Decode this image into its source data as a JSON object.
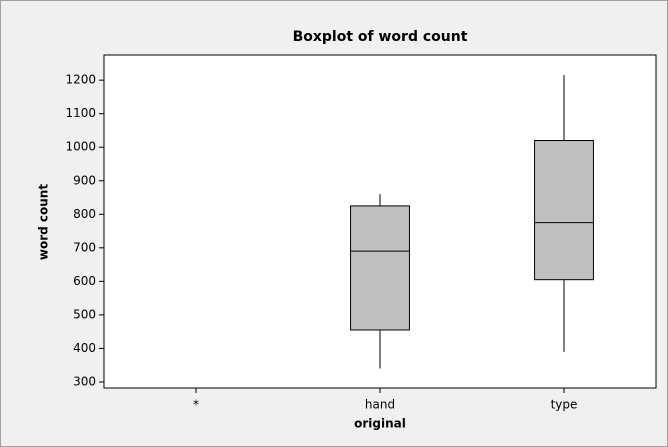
{
  "chart_data": {
    "type": "boxplot",
    "title": "Boxplot of word count",
    "x_label": "original",
    "y_label": "word count",
    "categories": [
      "*",
      "hand",
      "type"
    ],
    "min": [
      null,
      340,
      390
    ],
    "q1": [
      null,
      455,
      605
    ],
    "median": [
      null,
      690,
      775
    ],
    "q3": [
      null,
      825,
      1020
    ],
    "max": [
      null,
      860,
      1215
    ],
    "color": "#c0c0c0",
    "ylim": [
      282,
      1275
    ],
    "yticks": [
      300,
      400,
      500,
      600,
      700,
      800,
      900,
      1000,
      1100,
      1200
    ],
    "grid": false
  }
}
